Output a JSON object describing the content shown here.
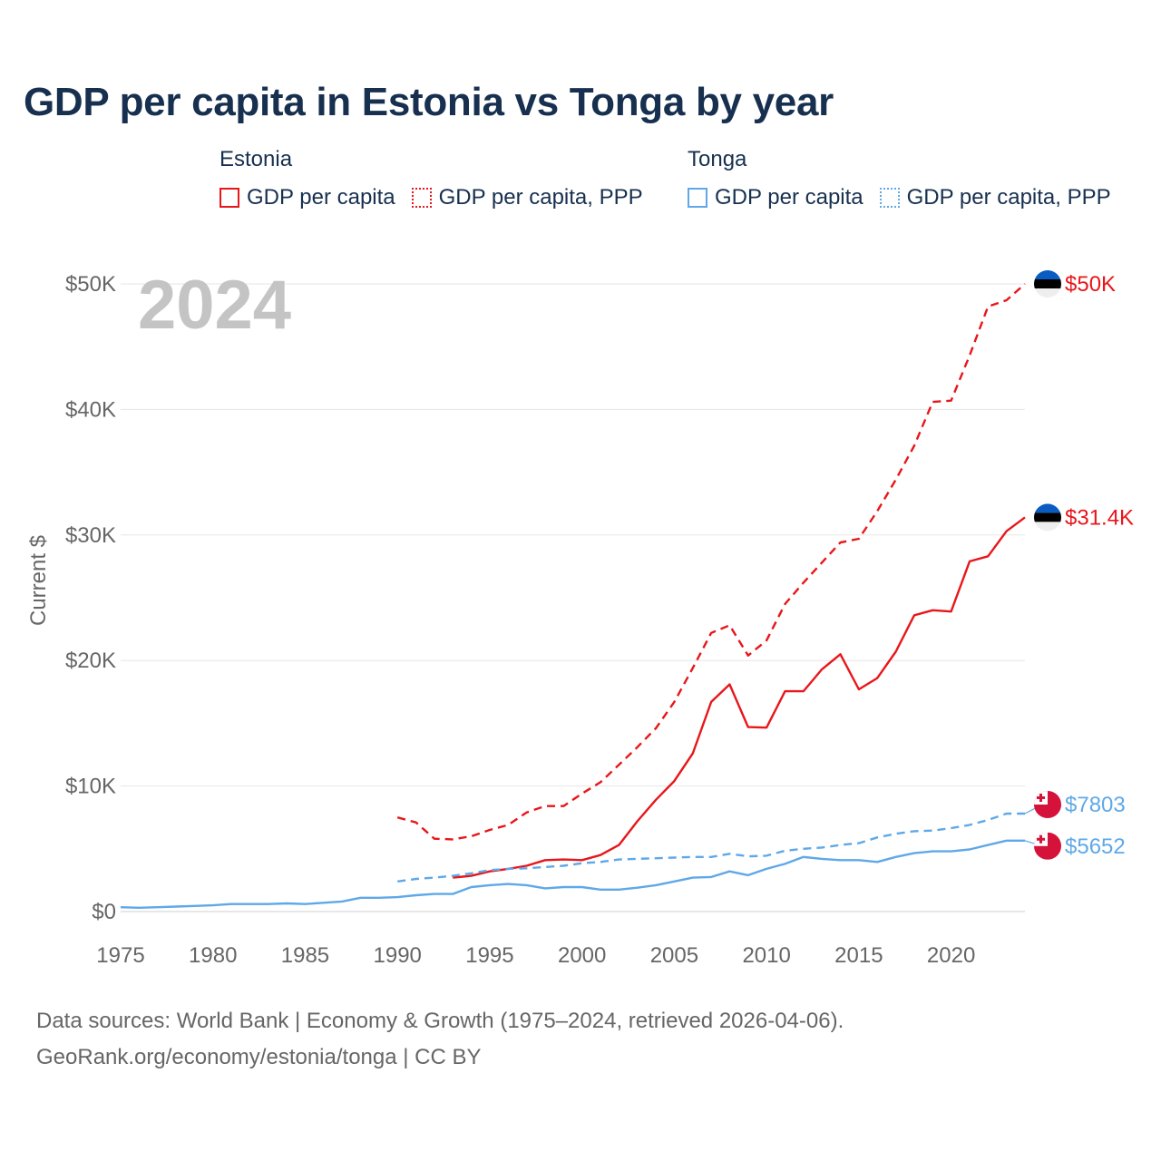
{
  "chart_data": {
    "type": "line",
    "title": "GDP per capita in Estonia vs Tonga by year",
    "ylabel": "Current $",
    "xlabel": "",
    "year_label": "2024",
    "xlim": [
      1975,
      2024
    ],
    "ylim": [
      0,
      50000
    ],
    "x_ticks": [
      1975,
      1980,
      1985,
      1990,
      1995,
      2000,
      2005,
      2010,
      2015,
      2020
    ],
    "y_ticks": [
      {
        "value": 0,
        "label": "$0"
      },
      {
        "value": 10000,
        "label": "$10K"
      },
      {
        "value": 20000,
        "label": "$20K"
      },
      {
        "value": 30000,
        "label": "$30K"
      },
      {
        "value": 40000,
        "label": "$40K"
      },
      {
        "value": 50000,
        "label": "$50K"
      }
    ],
    "legend": [
      {
        "country": "Estonia",
        "items": [
          {
            "label": "GDP per capita",
            "style": "solid",
            "color": "#e8161a"
          },
          {
            "label": "GDP per capita, PPP",
            "style": "dotted",
            "color": "#e8161a"
          }
        ]
      },
      {
        "country": "Tonga",
        "items": [
          {
            "label": "GDP per capita",
            "style": "solid",
            "color": "#5fa8e8"
          },
          {
            "label": "GDP per capita, PPP",
            "style": "dotted",
            "color": "#5fa8e8"
          }
        ]
      }
    ],
    "series": [
      {
        "name": "Estonia GDP per capita, PPP",
        "country": "Estonia",
        "color": "#e8161a",
        "dashed": true,
        "end_label": "$50K",
        "flag": "estonia",
        "x": [
          1990,
          1991,
          1992,
          1993,
          1994,
          1995,
          1996,
          1997,
          1998,
          1999,
          2000,
          2001,
          2002,
          2003,
          2004,
          2005,
          2006,
          2007,
          2008,
          2009,
          2010,
          2011,
          2012,
          2013,
          2014,
          2015,
          2016,
          2017,
          2018,
          2019,
          2020,
          2021,
          2022,
          2023,
          2024
        ],
        "values": [
          7500,
          7100,
          5800,
          5750,
          6000,
          6500,
          6900,
          7900,
          8400,
          8400,
          9400,
          10300,
          11700,
          13100,
          14600,
          16700,
          19400,
          22200,
          22800,
          20400,
          21600,
          24500,
          26200,
          27800,
          29400,
          29700,
          31900,
          34400,
          37100,
          40600,
          40700,
          44300,
          48200,
          48700,
          50000
        ]
      },
      {
        "name": "Estonia GDP per capita",
        "country": "Estonia",
        "color": "#e8161a",
        "dashed": false,
        "end_label": "$31.4K",
        "flag": "estonia",
        "x": [
          1993,
          1994,
          1995,
          1996,
          1997,
          1998,
          1999,
          2000,
          2001,
          2002,
          2003,
          2004,
          2005,
          2006,
          2007,
          2008,
          2009,
          2010,
          2011,
          2012,
          2013,
          2014,
          2015,
          2016,
          2017,
          2018,
          2019,
          2020,
          2021,
          2022,
          2023,
          2024
        ],
        "values": [
          2700,
          2850,
          3200,
          3400,
          3650,
          4100,
          4150,
          4100,
          4500,
          5300,
          7200,
          8900,
          10400,
          12600,
          16700,
          18100,
          14700,
          14650,
          17550,
          17550,
          19300,
          20500,
          17700,
          18600,
          20700,
          23600,
          24000,
          23900,
          27900,
          28300,
          30300,
          31400
        ]
      },
      {
        "name": "Tonga GDP per capita, PPP",
        "country": "Tonga",
        "color": "#5fa8e8",
        "dashed": true,
        "end_label": "$7803",
        "flag": "tonga",
        "x": [
          1990,
          1991,
          1992,
          1993,
          1994,
          1995,
          1996,
          1997,
          1998,
          1999,
          2000,
          2001,
          2002,
          2003,
          2004,
          2005,
          2006,
          2007,
          2008,
          2009,
          2010,
          2011,
          2012,
          2013,
          2014,
          2015,
          2016,
          2017,
          2018,
          2019,
          2020,
          2021,
          2022,
          2023,
          2024
        ],
        "values": [
          2400,
          2600,
          2700,
          2850,
          3050,
          3300,
          3400,
          3450,
          3550,
          3650,
          3850,
          3950,
          4150,
          4200,
          4250,
          4300,
          4350,
          4350,
          4600,
          4400,
          4450,
          4850,
          5000,
          5100,
          5300,
          5450,
          5900,
          6200,
          6400,
          6450,
          6650,
          6900,
          7300,
          7800,
          7803
        ]
      },
      {
        "name": "Tonga GDP per capita",
        "country": "Tonga",
        "color": "#5fa8e8",
        "dashed": false,
        "end_label": "$5652",
        "flag": "tonga",
        "x": [
          1975,
          1976,
          1977,
          1978,
          1979,
          1980,
          1981,
          1982,
          1983,
          1984,
          1985,
          1986,
          1987,
          1988,
          1989,
          1990,
          1991,
          1992,
          1993,
          1994,
          1995,
          1996,
          1997,
          1998,
          1999,
          2000,
          2001,
          2002,
          2003,
          2004,
          2005,
          2006,
          2007,
          2008,
          2009,
          2010,
          2011,
          2012,
          2013,
          2014,
          2015,
          2016,
          2017,
          2018,
          2019,
          2020,
          2021,
          2022,
          2023,
          2024
        ],
        "values": [
          350,
          300,
          350,
          400,
          450,
          500,
          600,
          600,
          600,
          650,
          600,
          700,
          800,
          1100,
          1100,
          1150,
          1300,
          1400,
          1400,
          1950,
          2100,
          2200,
          2100,
          1850,
          1950,
          1950,
          1750,
          1750,
          1900,
          2100,
          2400,
          2700,
          2750,
          3200,
          2900,
          3400,
          3800,
          4350,
          4200,
          4100,
          4100,
          3950,
          4350,
          4650,
          4800,
          4800,
          4950,
          5300,
          5652,
          5652
        ]
      }
    ]
  },
  "footer": {
    "line1": "Data sources: World Bank | Economy & Growth (1975–2024, retrieved 2026-04-06).",
    "line2": "GeoRank.org/economy/estonia/tonga | CC BY"
  }
}
